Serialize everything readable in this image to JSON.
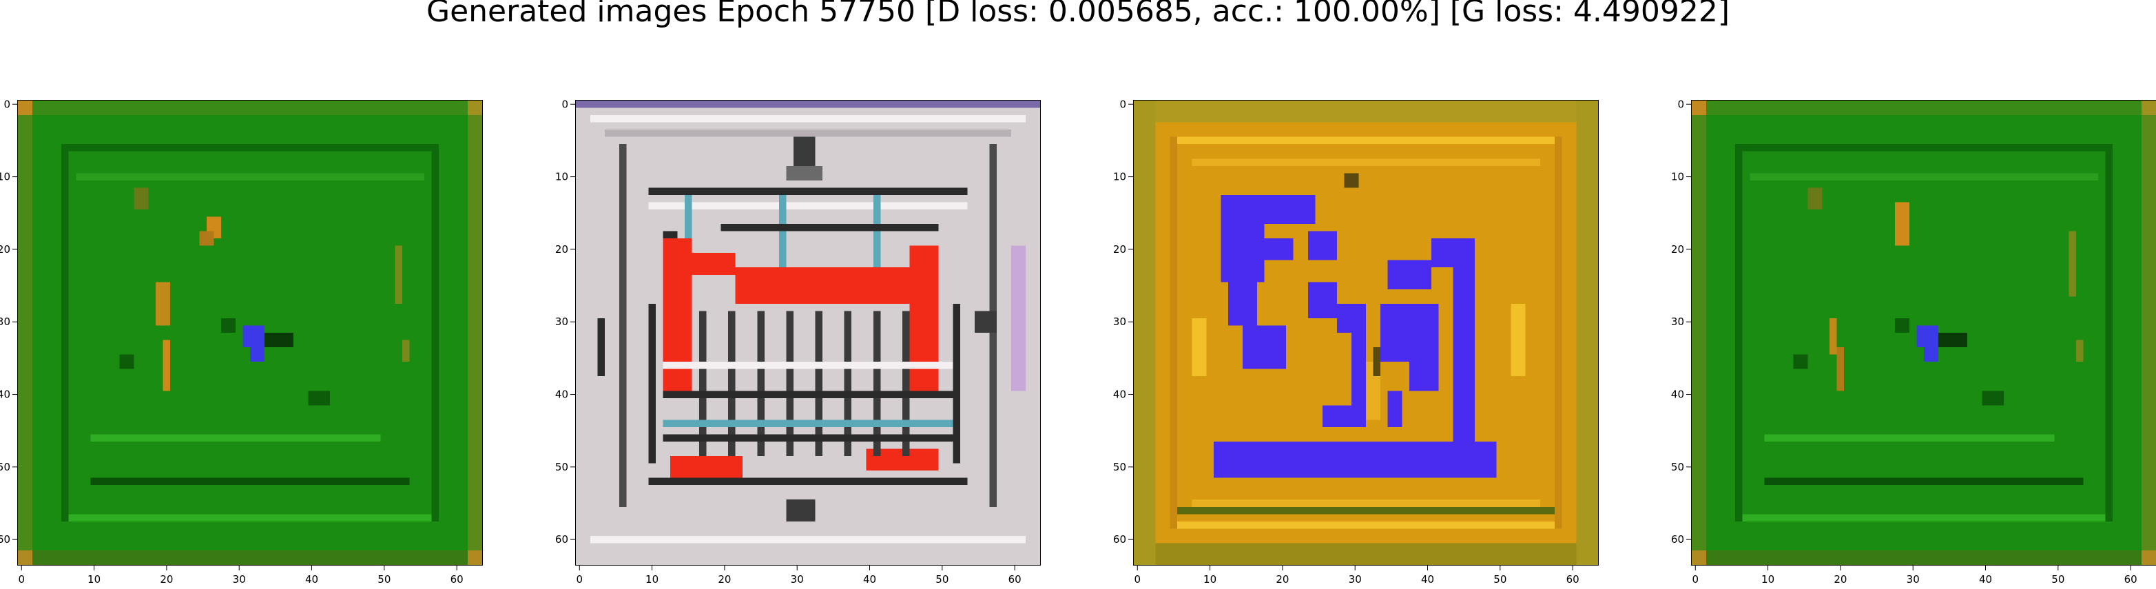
{
  "figure": {
    "title": "Generated images Epoch 57750 [D loss: 0.005685, acc.: 100.00%] [G loss: 4.490922]"
  },
  "axes": {
    "x_ticks": [
      "0",
      "10",
      "20",
      "30",
      "40",
      "50",
      "60"
    ],
    "y_ticks": [
      "0",
      "10",
      "20",
      "30",
      "40",
      "50",
      "60"
    ],
    "xlim": [
      -0.5,
      63.5
    ],
    "ylim": [
      63.5,
      -0.5
    ]
  },
  "panels": [
    {
      "name": "green-sample-1",
      "palette": {
        "bg": "#1a8c12",
        "dark": "#0d5c0a",
        "light": "#2fae24",
        "accent": "#d08a1a",
        "blob": "#3a3ae8"
      }
    },
    {
      "name": "building-sample",
      "palette": {
        "bg": "#d6cfd2",
        "dark": "#2a2a2a",
        "light": "#f4f0f2",
        "accent": "#f22a18",
        "blob": "#5aa8b8"
      }
    },
    {
      "name": "blue-glyph-sample",
      "palette": {
        "bg": "#d89a10",
        "dark": "#8a6a10",
        "light": "#f2c028",
        "accent": "#b0a030",
        "blob": "#4a2cf0"
      }
    },
    {
      "name": "green-sample-2",
      "palette": {
        "bg": "#1a8c12",
        "dark": "#0d5c0a",
        "light": "#2fae24",
        "accent": "#d08a1a",
        "blob": "#3a3ae8"
      }
    }
  ]
}
